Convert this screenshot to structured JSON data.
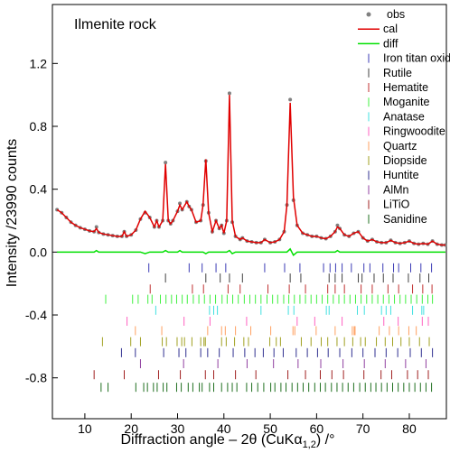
{
  "chart_data": {
    "type": "line",
    "title": "Ilmenite rock",
    "xlabel": [
      "Diffraction angle – 2θ (CuKα",
      "1,2",
      ") /°"
    ],
    "ylabel": "Intensity /23990 counts",
    "legend": "upper right",
    "xlim": [
      3,
      88
    ],
    "ylim": [
      -1.06,
      1.575
    ],
    "xticks": [
      10,
      20,
      30,
      40,
      50,
      60,
      70,
      80
    ],
    "yticks": [
      -0.8,
      -0.4,
      {
        "value": 0,
        "label": "0.0"
      },
      0.4,
      0.8,
      1.2
    ],
    "x": [
      4,
      5,
      6,
      7,
      8,
      9,
      10,
      11,
      12,
      12.5,
      13,
      14,
      15,
      16,
      17,
      18,
      18.5,
      19,
      20,
      21,
      22,
      23,
      24,
      25,
      25.5,
      26,
      26.8,
      27.4,
      28,
      28.5,
      29,
      30,
      30.5,
      31,
      32,
      32.5,
      33,
      34,
      35,
      35.5,
      36.1,
      36.7,
      37.5,
      38.3,
      39,
      39.5,
      40,
      40.6,
      41.2,
      41.8,
      42.5,
      43.5,
      44,
      45,
      46,
      47,
      48,
      48.8,
      50,
      51,
      52,
      53,
      53.6,
      54.3,
      55,
      55.8,
      57,
      58,
      59,
      60,
      61,
      62,
      63,
      64,
      64.5,
      65,
      66,
      67,
      68,
      69,
      70,
      71,
      72,
      73,
      74,
      75,
      76,
      77,
      78,
      79,
      80,
      81,
      82,
      83,
      84,
      85,
      86,
      87,
      87.8
    ],
    "series": [
      {
        "name": "obs",
        "color": "#808080",
        "style": "markers",
        "values": [
          0.27,
          0.25,
          0.22,
          0.19,
          0.17,
          0.155,
          0.145,
          0.135,
          0.13,
          0.16,
          0.125,
          0.115,
          0.11,
          0.105,
          0.1,
          0.1,
          0.13,
          0.1,
          0.11,
          0.14,
          0.21,
          0.25,
          0.22,
          0.16,
          0.2,
          0.16,
          0.2,
          0.57,
          0.2,
          0.18,
          0.2,
          0.26,
          0.31,
          0.27,
          0.32,
          0.29,
          0.27,
          0.19,
          0.2,
          0.3,
          0.58,
          0.25,
          0.13,
          0.2,
          0.15,
          0.17,
          0.12,
          0.2,
          1.01,
          0.19,
          0.1,
          0.08,
          0.09,
          0.07,
          0.065,
          0.06,
          0.06,
          0.08,
          0.06,
          0.065,
          0.08,
          0.13,
          0.3,
          0.97,
          0.33,
          0.17,
          0.12,
          0.11,
          0.1,
          0.1,
          0.09,
          0.085,
          0.1,
          0.13,
          0.17,
          0.15,
          0.11,
          0.1,
          0.12,
          0.13,
          0.09,
          0.07,
          0.08,
          0.065,
          0.06,
          0.06,
          0.075,
          0.06,
          0.055,
          0.06,
          0.07,
          0.055,
          0.05,
          0.055,
          0.05,
          0.07,
          0.05,
          0.045,
          0.045
        ]
      },
      {
        "name": "cal",
        "color": "#e00000",
        "style": "line",
        "values": [
          0.27,
          0.25,
          0.22,
          0.19,
          0.17,
          0.155,
          0.145,
          0.135,
          0.13,
          0.15,
          0.125,
          0.115,
          0.11,
          0.105,
          0.1,
          0.1,
          0.13,
          0.1,
          0.11,
          0.14,
          0.21,
          0.26,
          0.22,
          0.16,
          0.2,
          0.16,
          0.2,
          0.56,
          0.2,
          0.18,
          0.2,
          0.26,
          0.3,
          0.27,
          0.32,
          0.29,
          0.27,
          0.19,
          0.2,
          0.3,
          0.59,
          0.25,
          0.13,
          0.2,
          0.15,
          0.17,
          0.12,
          0.2,
          1.0,
          0.2,
          0.1,
          0.08,
          0.09,
          0.07,
          0.065,
          0.06,
          0.06,
          0.08,
          0.06,
          0.065,
          0.08,
          0.13,
          0.3,
          0.95,
          0.35,
          0.17,
          0.12,
          0.11,
          0.1,
          0.1,
          0.09,
          0.085,
          0.1,
          0.13,
          0.16,
          0.15,
          0.11,
          0.1,
          0.12,
          0.13,
          0.09,
          0.07,
          0.08,
          0.065,
          0.06,
          0.06,
          0.075,
          0.06,
          0.055,
          0.06,
          0.07,
          0.055,
          0.05,
          0.055,
          0.05,
          0.07,
          0.05,
          0.045,
          0.045
        ]
      },
      {
        "name": "diff",
        "color": "#00e000",
        "style": "line",
        "values": [
          0,
          0,
          0,
          0,
          0,
          0,
          0,
          0,
          0,
          0.01,
          0,
          0,
          0,
          0,
          0,
          0,
          0,
          0,
          0,
          0,
          0,
          -0.01,
          0,
          0,
          0,
          0,
          0,
          0.01,
          0,
          0,
          0,
          0,
          0.01,
          0,
          0,
          0,
          0,
          0,
          0,
          0,
          -0.01,
          0,
          0,
          0,
          0,
          0,
          0,
          0,
          0.01,
          -0.01,
          0,
          0,
          0,
          0,
          0,
          0,
          0,
          0,
          0,
          0,
          0,
          0,
          0,
          0.02,
          -0.02,
          0,
          0,
          0,
          0,
          0,
          0,
          0,
          0,
          0,
          0.01,
          0,
          0,
          0,
          0,
          0,
          0,
          0,
          0,
          0,
          0,
          0,
          0,
          0,
          0,
          0,
          0,
          0,
          0,
          0,
          0,
          0,
          0,
          0,
          0
        ]
      }
    ],
    "phases": [
      {
        "name": "Iron titan oxide",
        "color": "#3b3bb5",
        "offset": -0.1,
        "positions": [
          23.8,
          32.5,
          35.3,
          38.3,
          40.4,
          48.8,
          53.1,
          56.4,
          61.5,
          62.9,
          64.1,
          65.5,
          67.5,
          70.2,
          71.5,
          74.3,
          76.6,
          77.7,
          80.3,
          82.5,
          84.8
        ]
      },
      {
        "name": "Rutile",
        "color": "#404040",
        "offset": -0.165,
        "positions": [
          27.4,
          36.1,
          39.2,
          41.2,
          44.0,
          54.3,
          56.6,
          62.7,
          64.0,
          65.5,
          69.0,
          69.8,
          72.4,
          74.4,
          76.5,
          79.8,
          82.3,
          84.2
        ]
      },
      {
        "name": "Hematite",
        "color": "#c03030",
        "offset": -0.235,
        "positions": [
          24.1,
          33.2,
          35.6,
          40.9,
          43.5,
          49.5,
          54.1,
          57.6,
          62.4,
          64.0,
          66.0,
          69.6,
          72.0,
          75.4,
          77.7,
          80.7,
          82.9,
          84.9
        ]
      },
      {
        "name": "Moganite",
        "color": "#40f040",
        "offset": -0.3,
        "positions": [
          14.5,
          20.3,
          21.5,
          23.6,
          24.5,
          26.3,
          27.5,
          28.7,
          29.8,
          31.0,
          32.1,
          33.4,
          34.6,
          35.8,
          37.0,
          38.2,
          39.6,
          40.7,
          41.9,
          43.1,
          44.4,
          45.6,
          46.8,
          48.0,
          49.3,
          50.5,
          51.6,
          52.9,
          54.0,
          55.2,
          56.4,
          57.6,
          58.8,
          60.0,
          61.2,
          62.4,
          63.6,
          64.8,
          66.0,
          67.2,
          68.4,
          69.6,
          70.8,
          72.0,
          73.2,
          74.4,
          75.6,
          76.8,
          78.0,
          79.2,
          80.4,
          81.6,
          82.8,
          84.0,
          85.0
        ]
      },
      {
        "name": "Anatase",
        "color": "#40e0e0",
        "offset": -0.37,
        "positions": [
          25.3,
          36.9,
          37.8,
          38.6,
          48.0,
          53.9,
          55.1,
          62.1,
          62.7,
          68.8,
          70.3,
          74.0,
          75.0,
          76.0,
          80.7,
          82.7,
          83.1
        ]
      },
      {
        "name": "Ringwoodite",
        "color": "#ff60c0",
        "offset": -0.44,
        "positions": [
          19.1,
          31.4,
          37.0,
          44.9,
          55.8,
          59.6,
          65.5,
          74.5,
          77.6,
          82.8,
          84.1
        ]
      },
      {
        "name": "Quartz",
        "color": "#ffa060",
        "offset": -0.5,
        "positions": [
          20.9,
          26.6,
          36.5,
          39.5,
          40.3,
          42.5,
          45.8,
          50.1,
          54.9,
          55.3,
          59.9,
          64.0,
          67.7,
          68.1,
          68.3,
          73.5,
          75.7,
          77.7,
          79.9,
          81.5
        ]
      },
      {
        "name": "Diopside",
        "color": "#a0a020",
        "offset": -0.57,
        "positions": [
          13.8,
          19.9,
          22.0,
          26.7,
          27.6,
          29.9,
          30.9,
          31.5,
          33.1,
          35.0,
          35.7,
          36.0,
          39.5,
          40.5,
          42.3,
          44.3,
          45.3,
          49.9,
          51.3,
          52.2,
          56.7,
          58.8,
          61.0,
          62.4,
          64.4,
          66.0,
          67.8,
          69.5,
          70.5,
          72.9,
          74.8,
          76.4,
          78.2,
          80.0,
          82.2,
          84.3
        ]
      },
      {
        "name": "Huntite",
        "color": "#303090",
        "offset": -0.64,
        "positions": [
          17.9,
          20.9,
          27.0,
          30.3,
          31.8,
          35.0,
          36.5,
          39.0,
          42.0,
          44.5,
          46.7,
          48.5,
          50.8,
          52.8,
          55.6,
          58.0,
          60.2,
          62.5,
          65.0,
          67.6,
          70.0,
          72.6,
          75.0,
          77.5,
          80.2,
          82.6,
          85.0
        ]
      },
      {
        "name": "AlMn",
        "color": "#9040a0",
        "offset": -0.71,
        "positions": [
          22.0,
          31.3,
          38.7,
          45.0,
          50.7,
          56.0,
          60.9,
          65.7,
          70.3,
          74.8,
          79.2,
          83.6
        ]
      },
      {
        "name": "LiTiO",
        "color": "#a02020",
        "offset": -0.78,
        "positions": [
          12.0,
          18.5,
          25.9,
          30.6,
          36.0,
          37.8,
          42.5,
          46.9,
          53.8,
          57.6,
          60.8,
          63.3,
          65.8,
          70.2,
          73.9,
          76.2,
          79.6,
          81.8,
          84.1
        ]
      },
      {
        "name": "Sanidine",
        "color": "#207020",
        "offset": -0.86,
        "positions": [
          13.5,
          15.0,
          21.0,
          22.7,
          23.5,
          24.8,
          25.6,
          26.9,
          27.7,
          29.8,
          30.8,
          32.3,
          33.3,
          34.7,
          35.3,
          36.9,
          37.8,
          39.5,
          40.8,
          41.8,
          42.8,
          44.9,
          46.0,
          47.3,
          48.6,
          50.1,
          51.0,
          52.3,
          53.4,
          54.7,
          55.9,
          57.1,
          58.3,
          59.6,
          60.8,
          61.9,
          63.2,
          64.4,
          65.6,
          66.8,
          68.0,
          69.3,
          70.5,
          71.7,
          72.8,
          74.0,
          75.2,
          76.4,
          77.6,
          78.8,
          80.0,
          81.2,
          82.4,
          83.6,
          84.8
        ]
      }
    ]
  }
}
